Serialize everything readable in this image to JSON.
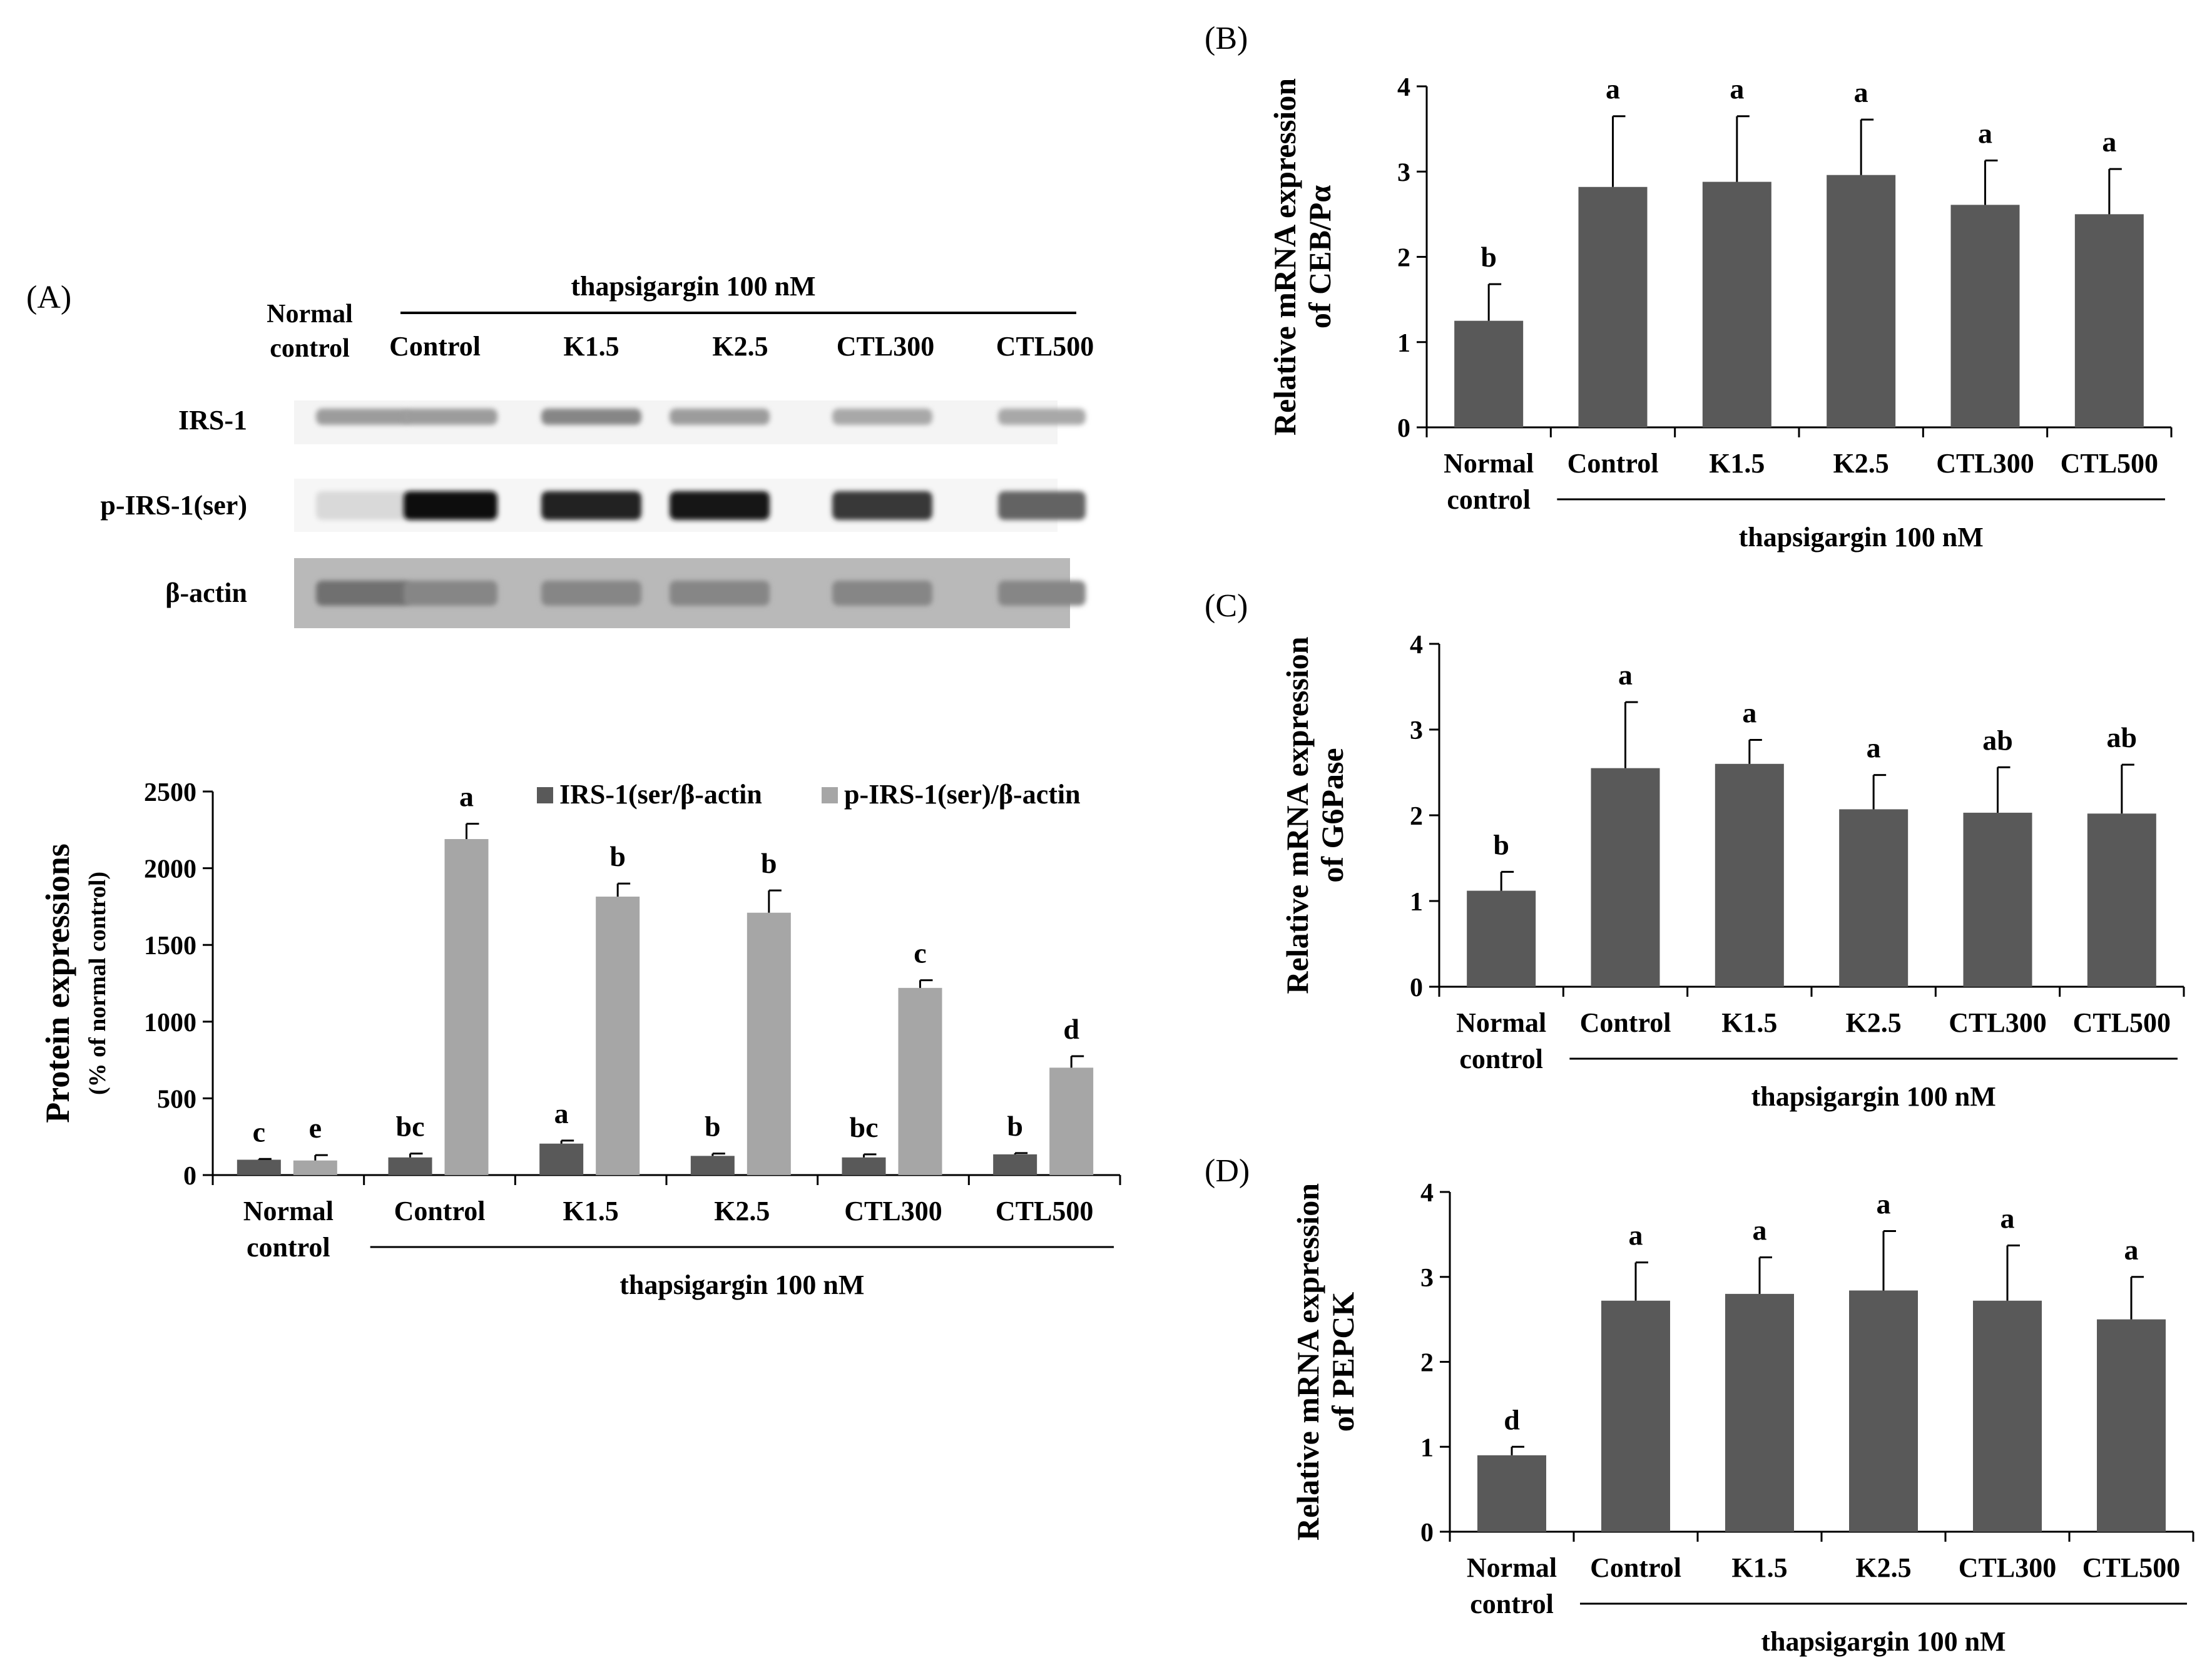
{
  "figure": {
    "panel_labels": [
      "(A)",
      "(B)",
      "(C)",
      "(D)"
    ],
    "treatment_label": "thapsigargin 100 nM",
    "group_labels": [
      "Normal\ncontrol",
      "Control",
      "K1.5",
      "K2.5",
      "CTL300",
      "CTL500"
    ],
    "colors": {
      "dark_bar": "#595959",
      "light_bar": "#a6a6a6",
      "axis": "#000000"
    }
  },
  "blot": {
    "header": "thapsigargin 100 nM",
    "lane_labels": [
      "Normal\ncontrol",
      "Control",
      "K1.5",
      "K2.5",
      "CTL300",
      "CTL500"
    ],
    "row_labels": [
      "IRS-1",
      "p-IRS-1(ser)",
      "β-actin"
    ],
    "band_intensity": {
      "IRS-1": [
        0.35,
        0.35,
        0.45,
        0.35,
        0.3,
        0.3
      ],
      "p-IRS-1(ser)": [
        0.08,
        1.0,
        0.9,
        0.95,
        0.8,
        0.6
      ],
      "β-actin": [
        0.55,
        0.45,
        0.45,
        0.45,
        0.45,
        0.45
      ]
    }
  },
  "chart_data": [
    {
      "id": "A",
      "type": "bar",
      "title": "",
      "ylabel": "Protein expressions",
      "ylabel_sub": "(% of normal control)",
      "xlabel": "thapsigargin 100 nM",
      "categories": [
        "Normal\ncontrol",
        "Control",
        "K1.5",
        "K2.5",
        "CTL300",
        "CTL500"
      ],
      "ylim": [
        0,
        2500
      ],
      "yticks": [
        0,
        500,
        1000,
        1500,
        2000,
        2500
      ],
      "legend": "top-right",
      "series": [
        {
          "name": "IRS-1(ser/β-actin",
          "color": "#595959",
          "values": [
            100,
            115,
            205,
            125,
            115,
            135
          ],
          "errors": [
            5,
            25,
            20,
            15,
            20,
            8
          ],
          "letters": [
            "c",
            "bc",
            "a",
            "b",
            "bc",
            "b"
          ]
        },
        {
          "name": "p-IRS-1(ser)/β-actin",
          "color": "#a6a6a6",
          "values": [
            95,
            2190,
            1815,
            1710,
            1220,
            700
          ],
          "errors": [
            35,
            100,
            85,
            145,
            50,
            75
          ],
          "letters": [
            "e",
            "a",
            "b",
            "b",
            "c",
            "d"
          ]
        }
      ]
    },
    {
      "id": "B",
      "type": "bar",
      "ylabel": "Relative mRNA expression",
      "ylabel_sub": "of CEB/Pα",
      "xlabel": "thapsigargin 100 nM",
      "categories": [
        "Normal\ncontrol",
        "Control",
        "K1.5",
        "K2.5",
        "CTL300",
        "CTL500"
      ],
      "ylim": [
        0,
        4
      ],
      "yticks": [
        0,
        1,
        2,
        3,
        4
      ],
      "series": [
        {
          "name": "mRNA",
          "color": "#595959",
          "values": [
            1.25,
            2.82,
            2.88,
            2.96,
            2.61,
            2.5
          ],
          "errors": [
            0.43,
            0.83,
            0.77,
            0.65,
            0.52,
            0.53
          ],
          "letters": [
            "b",
            "a",
            "a",
            "a",
            "a",
            "a"
          ]
        }
      ]
    },
    {
      "id": "C",
      "type": "bar",
      "ylabel": "Relative mRNA expression",
      "ylabel_sub": "of G6Pase",
      "xlabel": "thapsigargin 100 nM",
      "categories": [
        "Normal\ncontrol",
        "Control",
        "K1.5",
        "K2.5",
        "CTL300",
        "CTL500"
      ],
      "ylim": [
        0,
        4
      ],
      "yticks": [
        0,
        1,
        2,
        3,
        4
      ],
      "series": [
        {
          "name": "mRNA",
          "color": "#595959",
          "values": [
            1.12,
            2.55,
            2.6,
            2.07,
            2.03,
            2.02
          ],
          "errors": [
            0.22,
            0.77,
            0.28,
            0.4,
            0.53,
            0.57
          ],
          "letters": [
            "b",
            "a",
            "a",
            "a",
            "ab",
            "ab"
          ]
        }
      ]
    },
    {
      "id": "D",
      "type": "bar",
      "ylabel": "Relative mRNA expression",
      "ylabel_sub": "of PEPCK",
      "xlabel": "thapsigargin 100 nM",
      "categories": [
        "Normal\ncontrol",
        "Control",
        "K1.5",
        "K2.5",
        "CTL300",
        "CTL500"
      ],
      "ylim": [
        0,
        4
      ],
      "yticks": [
        0,
        1,
        2,
        3,
        4
      ],
      "series": [
        {
          "name": "mRNA",
          "color": "#595959",
          "values": [
            0.9,
            2.72,
            2.8,
            2.84,
            2.72,
            2.5
          ],
          "errors": [
            0.1,
            0.45,
            0.43,
            0.7,
            0.65,
            0.5
          ],
          "letters": [
            "d",
            "a",
            "a",
            "a",
            "a",
            "a"
          ]
        }
      ]
    }
  ]
}
